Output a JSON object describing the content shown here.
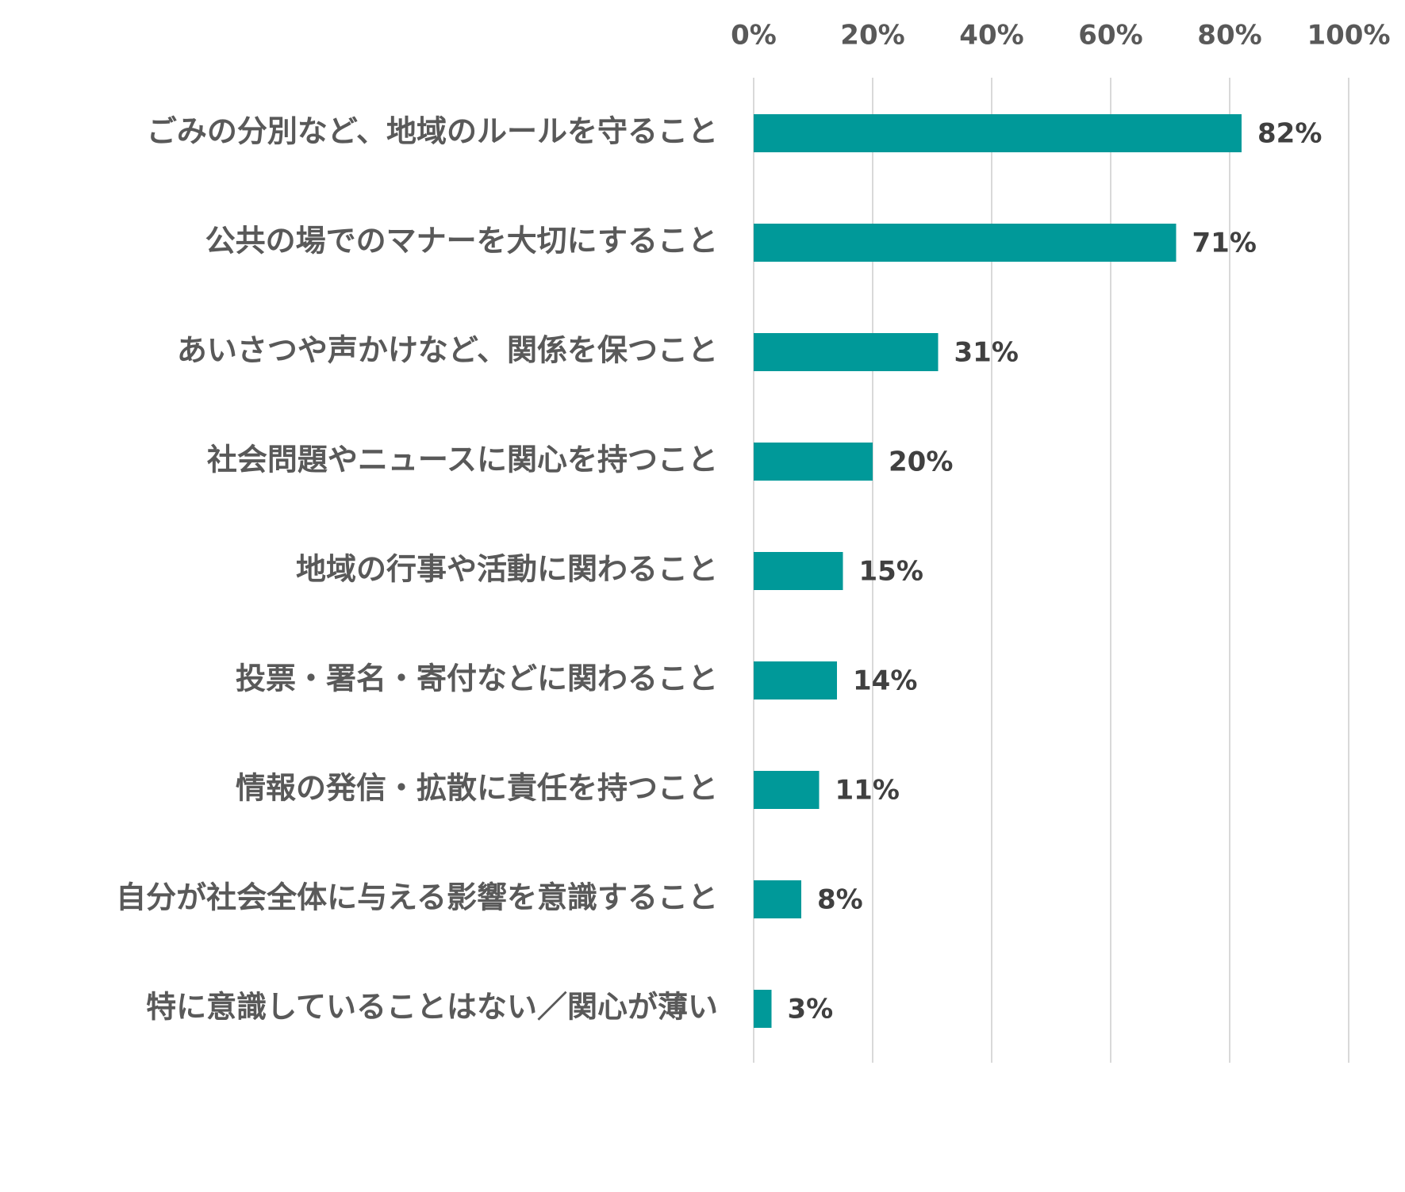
{
  "chart_data": {
    "type": "bar",
    "orientation": "horizontal",
    "categories": [
      "ごみの分別など、地域のルールを守ること",
      "公共の場でのマナーを大切にすること",
      "あいさつや声かけなど、関係を保つこと",
      "社会問題やニュースに関心を持つこと",
      "地域の行事や活動に関わること",
      "投票・署名・寄付などに関わること",
      "情報の発信・拡散に責任を持つこと",
      "自分が社会全体に与える影響を意識すること",
      "特に意識していることはない／関心が薄い"
    ],
    "values": [
      82,
      71,
      31,
      20,
      15,
      14,
      11,
      8,
      3
    ],
    "data_labels": [
      "82%",
      "71%",
      "31%",
      "20%",
      "15%",
      "14%",
      "11%",
      "8%",
      "3%"
    ],
    "xlim": [
      0,
      100
    ],
    "x_ticks": [
      0,
      20,
      40,
      60,
      80,
      100
    ],
    "x_tick_labels": [
      "0%",
      "20%",
      "40%",
      "60%",
      "80%",
      "100%"
    ],
    "x_axis_position": "top",
    "grid": true,
    "legend": "none",
    "bar_color": "#009999",
    "grid_color": "#d9d9d9"
  }
}
